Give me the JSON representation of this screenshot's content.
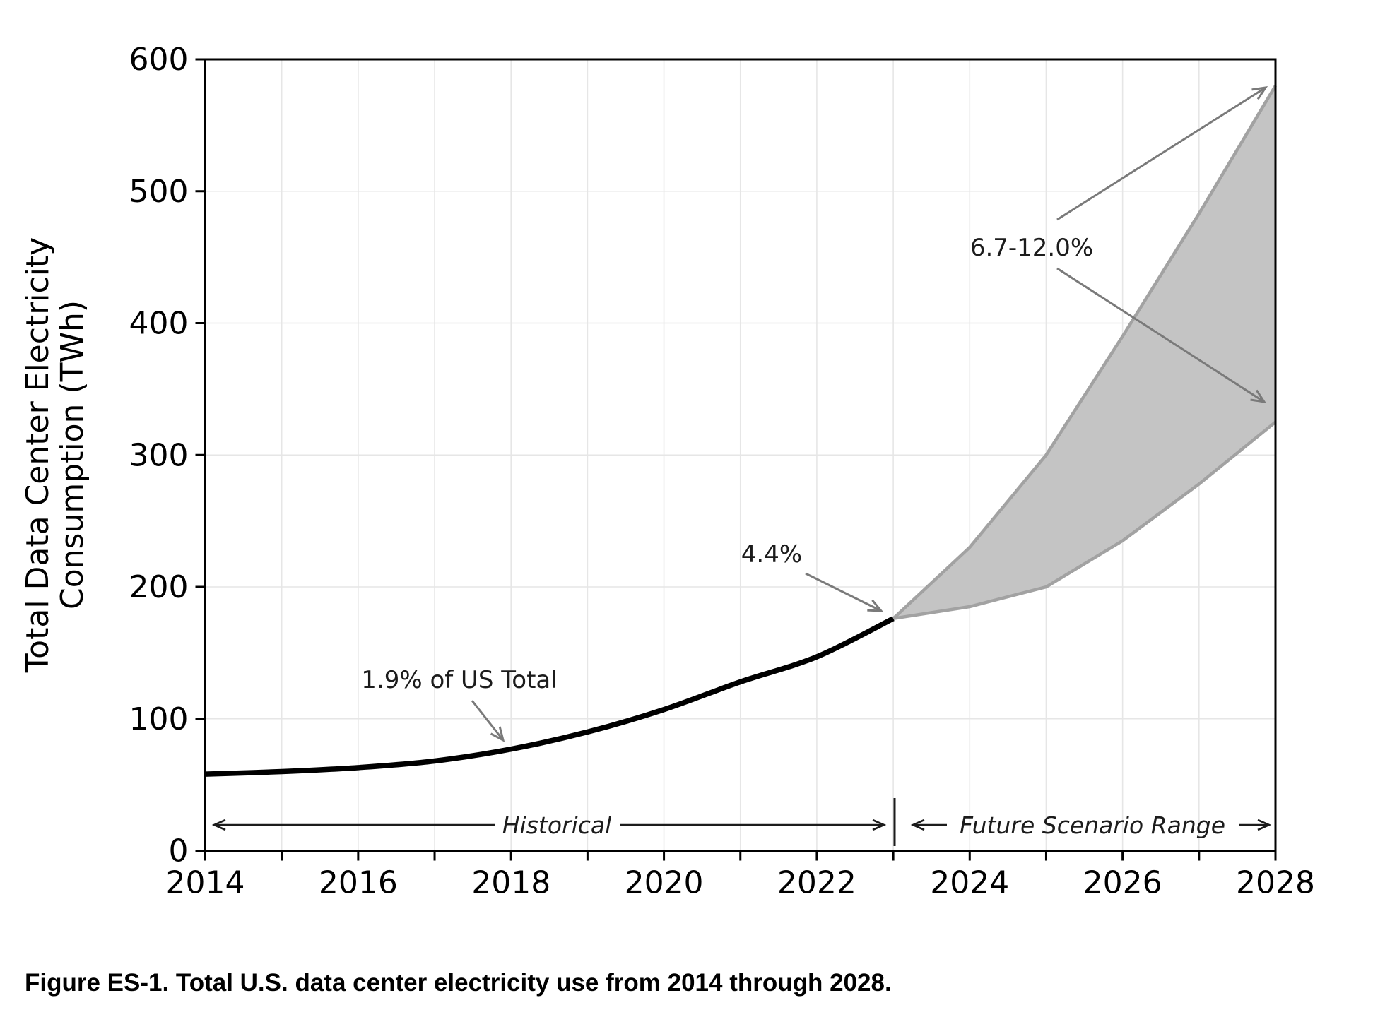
{
  "figure": {
    "caption": "Figure ES-1. Total U.S. data center electricity use from 2014 through 2028."
  },
  "chart_data": {
    "type": "line",
    "xlabel": "",
    "ylabel_lines": [
      "Total Data Center Electricity",
      "Consumption (TWh)"
    ],
    "xlim": [
      2014,
      2028
    ],
    "ylim": [
      0,
      600
    ],
    "x_ticks": [
      2014,
      2016,
      2018,
      2020,
      2022,
      2024,
      2026,
      2028
    ],
    "x_minor_tick_step": 1,
    "y_ticks": [
      0,
      100,
      200,
      300,
      400,
      500,
      600
    ],
    "grid": true,
    "colors": {
      "historical_line": "#000000",
      "band_fill": "#c4c4c4",
      "band_edge": "#a2a2a2",
      "arrow_gray": "#7a7a7a",
      "axis_black": "#000000",
      "gridline": "#e6e6e6"
    },
    "series": [
      {
        "name": "Historical",
        "type": "line",
        "x": [
          2014,
          2015,
          2016,
          2017,
          2018,
          2019,
          2020,
          2021,
          2022,
          2023
        ],
        "values": [
          58,
          60,
          63,
          68,
          77,
          90,
          107,
          128,
          147,
          176
        ]
      },
      {
        "name": "Future Scenario Range",
        "type": "band",
        "x": [
          2023,
          2024,
          2025,
          2026,
          2027,
          2028
        ],
        "upper": [
          176,
          230,
          300,
          390,
          483,
          580
        ],
        "lower": [
          176,
          185,
          200,
          235,
          278,
          325
        ]
      }
    ],
    "annotations": {
      "pct_2018": {
        "text": "1.9% of US Total",
        "points_to": {
          "x": 2018,
          "value": 77
        }
      },
      "pct_2023": {
        "text": "4.4%",
        "points_to": {
          "x": 2023,
          "value": 176
        }
      },
      "pct_2028": {
        "text": "6.7-12.0%",
        "points_to_range": [
          325,
          580
        ]
      },
      "historical_span": {
        "text": "Historical",
        "from": 2014,
        "to": 2023
      },
      "future_span": {
        "text": "Future Scenario Range",
        "from": 2023,
        "to": 2028
      }
    }
  }
}
